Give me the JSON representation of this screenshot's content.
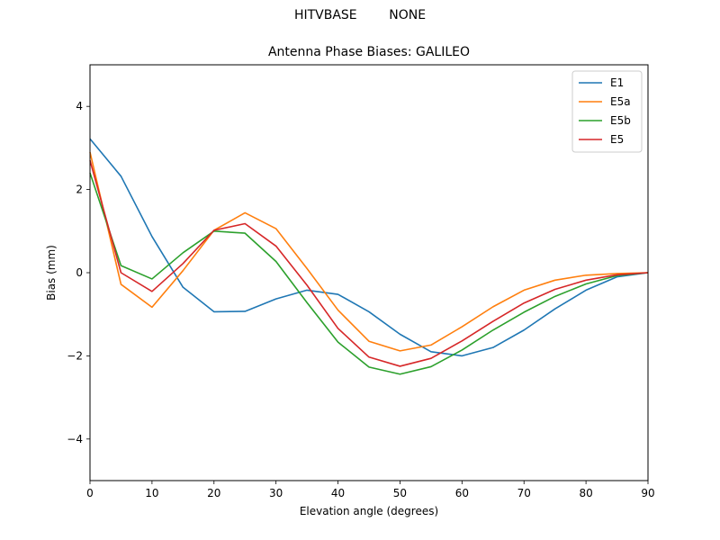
{
  "chart_data": {
    "type": "line",
    "suptitle": "HITVBASE        NONE",
    "title": "Antenna Phase Biases: GALILEO",
    "xlabel": "Elevation angle (degrees)",
    "ylabel": "Bias (mm)",
    "xlim": [
      0,
      90
    ],
    "ylim": [
      -5,
      5
    ],
    "xticks": [
      0,
      10,
      20,
      30,
      40,
      50,
      60,
      70,
      80,
      90
    ],
    "yticks": [
      -4,
      -2,
      0,
      2,
      4
    ],
    "yticks_text": [
      "−4",
      "−2",
      "0",
      "2",
      "4"
    ],
    "grid": false,
    "legend_position": "top-right",
    "x": [
      0,
      5,
      10,
      15,
      20,
      25,
      30,
      35,
      40,
      45,
      50,
      55,
      60,
      65,
      70,
      75,
      80,
      85,
      90
    ],
    "series": [
      {
        "name": "E1",
        "color": "#1f77b4",
        "values": [
          3.22,
          2.32,
          0.87,
          -0.35,
          -0.94,
          -0.93,
          -0.63,
          -0.42,
          -0.52,
          -0.94,
          -1.48,
          -1.9,
          -2.0,
          -1.8,
          -1.38,
          -0.87,
          -0.42,
          -0.1,
          0.0
        ]
      },
      {
        "name": "E5a",
        "color": "#ff7f0e",
        "values": [
          2.9,
          -0.28,
          -0.83,
          0.05,
          1.02,
          1.44,
          1.06,
          0.1,
          -0.9,
          -1.65,
          -1.88,
          -1.74,
          -1.3,
          -0.82,
          -0.42,
          -0.18,
          -0.06,
          -0.02,
          0.0
        ]
      },
      {
        "name": "E5b",
        "color": "#2ca02c",
        "values": [
          2.4,
          0.17,
          -0.15,
          0.48,
          1.0,
          0.95,
          0.27,
          -0.72,
          -1.67,
          -2.27,
          -2.44,
          -2.26,
          -1.86,
          -1.38,
          -0.95,
          -0.57,
          -0.27,
          -0.07,
          0.0
        ]
      },
      {
        "name": "E5",
        "color": "#d62728",
        "values": [
          2.7,
          0.0,
          -0.45,
          0.22,
          1.02,
          1.18,
          0.64,
          -0.3,
          -1.34,
          -2.03,
          -2.25,
          -2.06,
          -1.64,
          -1.17,
          -0.73,
          -0.4,
          -0.18,
          -0.05,
          0.0
        ]
      }
    ]
  }
}
